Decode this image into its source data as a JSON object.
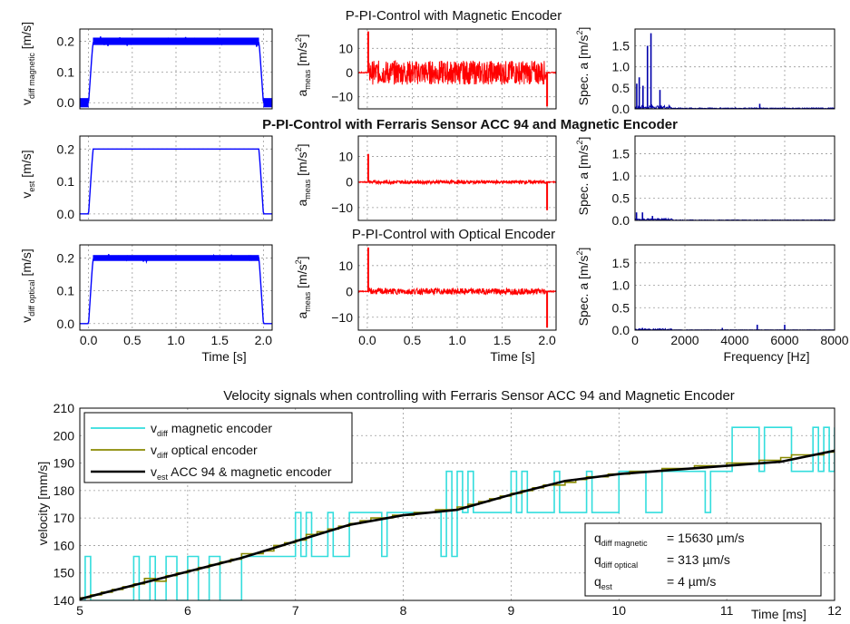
{
  "titles": {
    "row1": "P-PI-Control with Magnetic Encoder",
    "row2": "P-PI-Control with Ferraris Sensor ACC 94 and Magnetic Encoder",
    "row3": "P-PI-Control with Optical Encoder",
    "bottom": "Velocity signals when controlling with Ferraris Sensor ACC 94 and Magnetic Encoder"
  },
  "ylabels": {
    "vdiff_mag": {
      "main": "v",
      "sub": "diff magnetic",
      "unit": " [m/s]"
    },
    "vest": {
      "main": "v",
      "sub": "est",
      "unit": " [m/s]"
    },
    "vdiff_opt": {
      "main": "v",
      "sub": "diff optical",
      "unit": " [m/s]"
    },
    "ameas": {
      "main": "a",
      "sub": "meas",
      "unit": " [m/s",
      "sup": "2",
      "close": "]"
    },
    "spec": {
      "main": "Spec. a [m/s",
      "sup": "2",
      "close": "]"
    },
    "velocity": "velocity [mm/s]"
  },
  "xlabels": {
    "time_s": "Time [s]",
    "frequency": "Frequency [Hz]",
    "time_ms": "Time [ms]"
  },
  "chart_data": [
    {
      "id": "v_mag",
      "type": "line",
      "color": "#0000ff",
      "xlim": [
        -0.1,
        2.1
      ],
      "ylim": [
        -0.02,
        0.24
      ],
      "xticks": [
        0,
        0.5,
        1,
        1.5,
        2
      ],
      "xticklabels": [
        "",
        "",
        "",
        "",
        ""
      ],
      "yticks": [
        0,
        0.1,
        0.2
      ],
      "yticklabels": [
        "0.0",
        "0.1",
        "0.2"
      ],
      "series": [
        {
          "x": [
            -0.1,
            0.0,
            0.05,
            1.95,
            2.0,
            2.1
          ],
          "y": [
            0,
            0,
            0.2,
            0.2,
            0,
            0
          ]
        }
      ],
      "noise": 0.012
    },
    {
      "id": "a_mag",
      "type": "line",
      "color": "#ff0000",
      "xlim": [
        -0.1,
        2.1
      ],
      "ylim": [
        -15,
        18
      ],
      "xticks": [
        0,
        0.5,
        1,
        1.5,
        2
      ],
      "xticklabels": [
        "",
        "",
        "",
        "",
        ""
      ],
      "yticks": [
        -10,
        0,
        10
      ],
      "yticklabels": [
        "−10",
        "0",
        "10"
      ],
      "series": [
        {
          "x": [
            -0.1,
            2.1
          ],
          "y": [
            0,
            0
          ]
        }
      ],
      "noise": 5,
      "spikes": [
        [
          0.01,
          17
        ],
        [
          2.0,
          -14
        ]
      ]
    },
    {
      "id": "spec_mag",
      "type": "line",
      "color": "#0000aa",
      "xlim": [
        0,
        8000
      ],
      "ylim": [
        0,
        1.9
      ],
      "xticks": [
        0,
        2000,
        4000,
        6000,
        8000
      ],
      "xticklabels": [
        "",
        "",
        "",
        "",
        ""
      ],
      "yticks": [
        0,
        0.5,
        1,
        1.5
      ],
      "yticklabels": [
        "0.0",
        "0.5",
        "1.0",
        "1.5"
      ],
      "spikes": [
        [
          70,
          0.6
        ],
        [
          170,
          0.75
        ],
        [
          320,
          0.55
        ],
        [
          500,
          1.5
        ],
        [
          640,
          1.8
        ],
        [
          1000,
          0.45
        ],
        [
          5000,
          0.12
        ]
      ],
      "noise": 0.04
    },
    {
      "id": "v_est",
      "type": "line",
      "color": "#0000ff",
      "xlim": [
        -0.1,
        2.1
      ],
      "ylim": [
        -0.02,
        0.24
      ],
      "xticks": [
        0,
        0.5,
        1,
        1.5,
        2
      ],
      "xticklabels": [
        "",
        "",
        "",
        "",
        ""
      ],
      "yticks": [
        0,
        0.1,
        0.2
      ],
      "yticklabels": [
        "0.0",
        "0.1",
        "0.2"
      ],
      "series": [
        {
          "x": [
            -0.1,
            0.0,
            0.05,
            1.95,
            2.0,
            2.1
          ],
          "y": [
            0,
            0,
            0.2,
            0.2,
            0,
            0
          ]
        }
      ],
      "noise": 0.0
    },
    {
      "id": "a_est",
      "type": "line",
      "color": "#ff0000",
      "xlim": [
        -0.1,
        2.1
      ],
      "ylim": [
        -15,
        18
      ],
      "xticks": [
        0,
        0.5,
        1,
        1.5,
        2
      ],
      "xticklabels": [
        "",
        "",
        "",
        "",
        ""
      ],
      "yticks": [
        -10,
        0,
        10
      ],
      "yticklabels": [
        "−10",
        "0",
        "10"
      ],
      "series": [
        {
          "x": [
            -0.1,
            2.1
          ],
          "y": [
            0,
            0
          ]
        }
      ],
      "noise": 0.7,
      "spikes": [
        [
          0.01,
          11
        ],
        [
          2.0,
          -11
        ]
      ]
    },
    {
      "id": "spec_est",
      "type": "line",
      "color": "#0000aa",
      "xlim": [
        0,
        8000
      ],
      "ylim": [
        0,
        1.9
      ],
      "xticks": [
        0,
        2000,
        4000,
        6000,
        8000
      ],
      "xticklabels": [
        "",
        "",
        "",
        "",
        ""
      ],
      "yticks": [
        0,
        0.5,
        1,
        1.5
      ],
      "yticklabels": [
        "0.0",
        "0.5",
        "1.0",
        "1.5"
      ],
      "spikes": [
        [
          60,
          0.18
        ],
        [
          300,
          0.18
        ],
        [
          700,
          0.1
        ]
      ],
      "noise": 0.02
    },
    {
      "id": "v_opt",
      "type": "line",
      "color": "#0000ff",
      "xlim": [
        -0.1,
        2.1
      ],
      "ylim": [
        -0.02,
        0.24
      ],
      "xticks": [
        0,
        0.5,
        1,
        1.5,
        2
      ],
      "xticklabels": [
        "0.0",
        "0.5",
        "1.0",
        "1.5",
        "2.0"
      ],
      "yticks": [
        0,
        0.1,
        0.2
      ],
      "yticklabels": [
        "0.0",
        "0.1",
        "0.2"
      ],
      "series": [
        {
          "x": [
            -0.1,
            0.0,
            0.05,
            1.95,
            2.0,
            2.1
          ],
          "y": [
            0,
            0,
            0.2,
            0.2,
            0,
            0
          ]
        }
      ],
      "noise": 0.008
    },
    {
      "id": "a_opt",
      "type": "line",
      "color": "#ff0000",
      "xlim": [
        -0.1,
        2.1
      ],
      "ylim": [
        -15,
        18
      ],
      "xticks": [
        0,
        0.5,
        1,
        1.5,
        2
      ],
      "xticklabels": [
        "0.0",
        "0.5",
        "1.0",
        "1.5",
        "2.0"
      ],
      "yticks": [
        -10,
        0,
        10
      ],
      "yticklabels": [
        "−10",
        "0",
        "10"
      ],
      "series": [
        {
          "x": [
            -0.1,
            2.1
          ],
          "y": [
            0,
            0
          ]
        }
      ],
      "noise": 1.2,
      "spikes": [
        [
          0.01,
          17
        ],
        [
          2.0,
          -14
        ]
      ]
    },
    {
      "id": "spec_opt",
      "type": "line",
      "color": "#0000aa",
      "xlim": [
        0,
        8000
      ],
      "ylim": [
        0,
        1.9
      ],
      "xticks": [
        0,
        2000,
        4000,
        6000,
        8000
      ],
      "xticklabels": [
        "0",
        "2000",
        "4000",
        "6000",
        "8000"
      ],
      "yticks": [
        0,
        0.5,
        1,
        1.5
      ],
      "yticklabels": [
        "0.0",
        "0.5",
        "1.0",
        "1.5"
      ],
      "spikes": [
        [
          300,
          0.05
        ],
        [
          1000,
          0.04
        ],
        [
          3500,
          0.05
        ],
        [
          4900,
          0.12
        ],
        [
          6000,
          0.12
        ]
      ],
      "noise": 0.015
    },
    {
      "id": "velocity",
      "type": "line",
      "xlim": [
        5,
        12
      ],
      "ylim": [
        140,
        210
      ],
      "xticks": [
        5,
        6,
        7,
        8,
        9,
        10,
        11,
        12
      ],
      "xticklabels": [
        "5",
        "6",
        "7",
        "8",
        "9",
        "10",
        "11",
        "12"
      ],
      "yticks": [
        140,
        150,
        160,
        170,
        180,
        190,
        200,
        210
      ],
      "yticklabels": [
        "140",
        "150",
        "160",
        "170",
        "180",
        "190",
        "200",
        "210"
      ],
      "series": [
        {
          "name": "magnetic encoder",
          "color": "#33dddd",
          "step": true,
          "x": [
            5,
            5.05,
            5.1,
            5.15,
            5.5,
            5.55,
            5.65,
            5.7,
            5.8,
            5.9,
            6.0,
            6.1,
            6.2,
            6.3,
            6.5,
            6.55,
            7.0,
            7.05,
            7.1,
            7.15,
            7.3,
            7.35,
            7.5,
            7.55,
            7.8,
            7.85,
            8.3,
            8.35,
            8.4,
            8.45,
            8.5,
            8.55,
            8.6,
            8.65,
            9.0,
            9.05,
            9.1,
            9.15,
            9.4,
            9.45,
            9.7,
            9.75,
            10.0,
            10.05,
            10.2,
            10.25,
            10.4,
            10.45,
            10.8,
            10.85,
            11.0,
            11.05,
            11.3,
            11.35,
            11.6,
            11.65,
            11.8,
            11.85,
            11.9,
            11.95,
            12.0
          ],
          "y": [
            140,
            156,
            140,
            140,
            156,
            140,
            156,
            140,
            156,
            140,
            156,
            140,
            156,
            140,
            156,
            156,
            172,
            156,
            172,
            156,
            172,
            156,
            172,
            172,
            156,
            172,
            172,
            156,
            187,
            156,
            187,
            172,
            187,
            172,
            187,
            172,
            187,
            172,
            187,
            172,
            187,
            172,
            187,
            187,
            187,
            172,
            187,
            187,
            172,
            187,
            187,
            203,
            187,
            203,
            187,
            187,
            203,
            187,
            203,
            187,
            203
          ]
        },
        {
          "name": "optical encoder",
          "color": "#8a8a00",
          "step": true,
          "x": [
            5.0,
            5.1,
            5.2,
            5.3,
            5.4,
            5.5,
            5.6,
            5.7,
            5.8,
            5.9,
            6.0,
            6.1,
            6.2,
            6.3,
            6.4,
            6.5,
            6.6,
            6.7,
            6.8,
            6.9,
            7.0,
            7.1,
            7.2,
            7.3,
            7.4,
            7.5,
            7.6,
            7.7,
            7.8,
            7.9,
            8.0,
            8.1,
            8.2,
            8.3,
            8.4,
            8.5,
            8.6,
            8.7,
            8.8,
            8.9,
            9.0,
            9.1,
            9.2,
            9.3,
            9.4,
            9.5,
            9.6,
            9.7,
            9.8,
            9.9,
            10.0,
            10.1,
            10.2,
            10.3,
            10.4,
            10.5,
            10.6,
            10.7,
            10.8,
            10.9,
            11.0,
            11.1,
            11.2,
            11.3,
            11.4,
            11.5,
            11.6,
            11.7,
            11.8,
            11.9,
            12.0
          ],
          "y": [
            141,
            142,
            143,
            144,
            145,
            146,
            148,
            147,
            149,
            150,
            151,
            152,
            153,
            154,
            155,
            157,
            157,
            158,
            160,
            161,
            162,
            164,
            165,
            166,
            167,
            168,
            169,
            170,
            170,
            171,
            171,
            172,
            172,
            173,
            173,
            174,
            175,
            176,
            177,
            178,
            179,
            180,
            181,
            182,
            182,
            183,
            184,
            185,
            185,
            186,
            186,
            187,
            187,
            187,
            188,
            188,
            188,
            189,
            189,
            189,
            190,
            190,
            190,
            191,
            191,
            192,
            193,
            193,
            193,
            194,
            195
          ]
        },
        {
          "name": "ACC 94 & magnetic encoder",
          "color": "#000000",
          "step": false,
          "x": [
            5.0,
            5.5,
            6.0,
            6.5,
            7.0,
            7.5,
            8.0,
            8.5,
            9.0,
            9.5,
            10.0,
            10.5,
            11.0,
            11.5,
            12.0
          ],
          "y": [
            140.5,
            145.5,
            150.5,
            155.5,
            161.5,
            167.5,
            171.0,
            173.0,
            178.5,
            183.5,
            186.0,
            187.5,
            189.0,
            190.5,
            194.5
          ]
        }
      ],
      "legend": {
        "placement": "top-left",
        "entries": [
          {
            "sym": "v",
            "sub": "diff",
            "text": " magnetic encoder"
          },
          {
            "sym": "v",
            "sub": "diff",
            "text": " optical encoder"
          },
          {
            "sym": "v",
            "sub": "est",
            "text": " ACC 94 & magnetic encoder"
          }
        ]
      },
      "annotation": {
        "placement": "bottom-right",
        "rows": [
          {
            "sym": "q",
            "sub": "diff magnetic",
            "val": "= 15630 µm/s"
          },
          {
            "sym": "q",
            "sub": "diff optical",
            "val": "=   313 µm/s"
          },
          {
            "sym": "q",
            "sub": "est",
            "val": "=     4 µm/s"
          }
        ]
      }
    }
  ]
}
